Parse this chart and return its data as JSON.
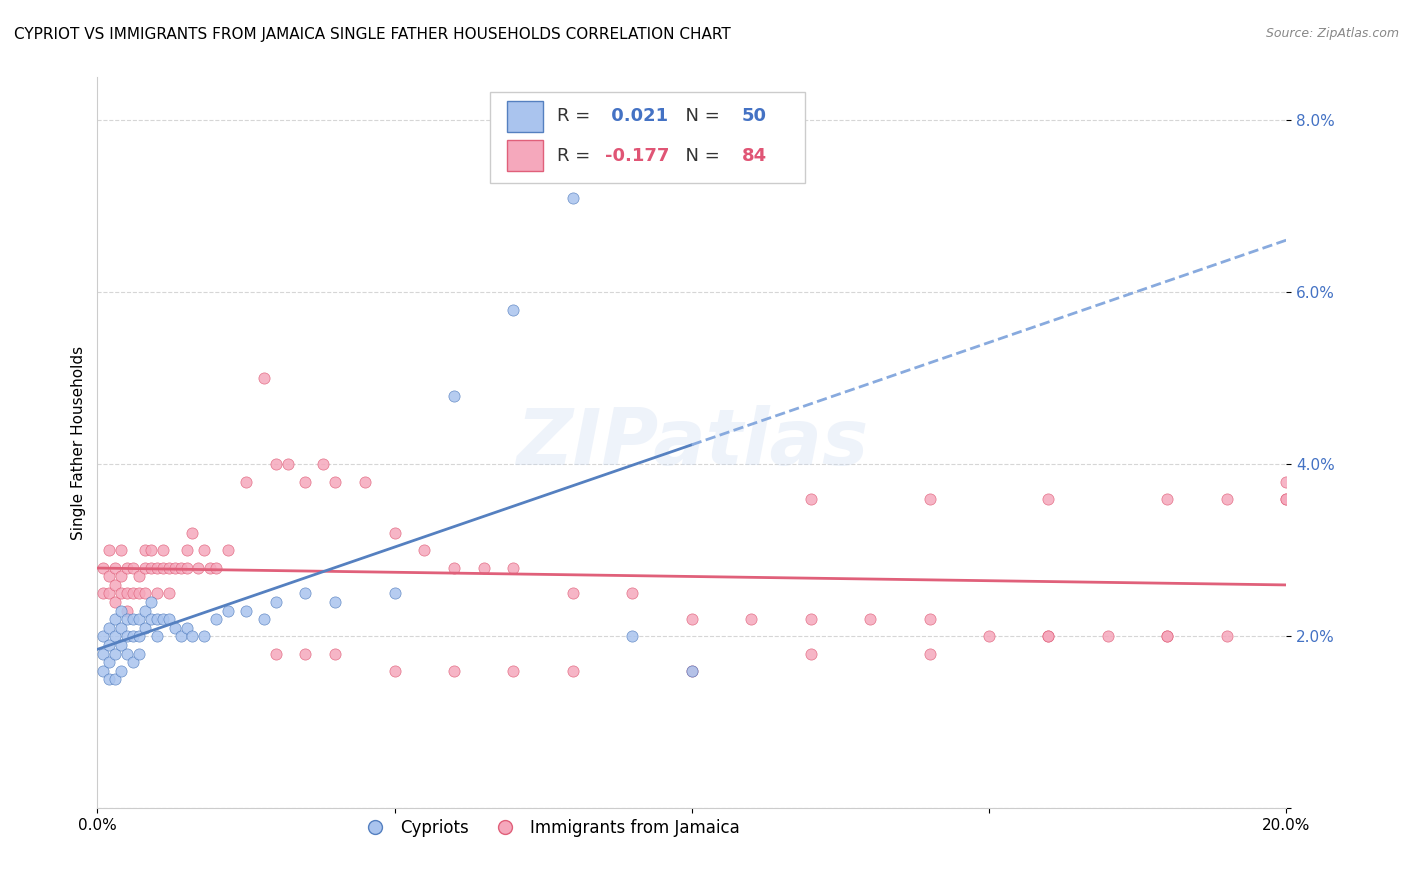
{
  "title": "CYPRIOT VS IMMIGRANTS FROM JAMAICA SINGLE FATHER HOUSEHOLDS CORRELATION CHART",
  "source": "Source: ZipAtlas.com",
  "ylabel": "Single Father Households",
  "xlim": [
    0.0,
    0.2
  ],
  "ylim": [
    0.0,
    0.085
  ],
  "yticks": [
    0.0,
    0.02,
    0.04,
    0.06,
    0.08
  ],
  "ytick_labels": [
    "",
    "2.0%",
    "4.0%",
    "6.0%",
    "8.0%"
  ],
  "xticks": [
    0.0,
    0.05,
    0.1,
    0.15,
    0.2
  ],
  "xtick_labels": [
    "0.0%",
    "",
    "",
    "",
    "20.0%"
  ],
  "R_cypriot": 0.021,
  "N_cypriot": 50,
  "R_jamaica": -0.177,
  "N_jamaica": 84,
  "color_cypriot": "#aac4ee",
  "color_jamaica": "#f5a8bc",
  "color_cypriot_line": "#5580c0",
  "color_jamaica_line": "#e0607a",
  "color_cypriot_dashed": "#88aade",
  "watermark": "ZIPatlas",
  "cypriot_x": [
    0.001,
    0.001,
    0.001,
    0.002,
    0.002,
    0.002,
    0.002,
    0.003,
    0.003,
    0.003,
    0.003,
    0.004,
    0.004,
    0.004,
    0.004,
    0.005,
    0.005,
    0.005,
    0.006,
    0.006,
    0.006,
    0.007,
    0.007,
    0.007,
    0.008,
    0.008,
    0.009,
    0.009,
    0.01,
    0.01,
    0.011,
    0.012,
    0.013,
    0.014,
    0.015,
    0.016,
    0.018,
    0.02,
    0.022,
    0.025,
    0.028,
    0.03,
    0.035,
    0.04,
    0.05,
    0.06,
    0.07,
    0.08,
    0.09,
    0.1
  ],
  "cypriot_y": [
    0.02,
    0.018,
    0.016,
    0.021,
    0.019,
    0.017,
    0.015,
    0.022,
    0.02,
    0.018,
    0.015,
    0.023,
    0.021,
    0.019,
    0.016,
    0.022,
    0.02,
    0.018,
    0.022,
    0.02,
    0.017,
    0.022,
    0.02,
    0.018,
    0.023,
    0.021,
    0.024,
    0.022,
    0.022,
    0.02,
    0.022,
    0.022,
    0.021,
    0.02,
    0.021,
    0.02,
    0.02,
    0.022,
    0.023,
    0.023,
    0.022,
    0.024,
    0.025,
    0.024,
    0.025,
    0.048,
    0.058,
    0.071,
    0.02,
    0.016
  ],
  "jamaica_x": [
    0.001,
    0.001,
    0.002,
    0.002,
    0.002,
    0.003,
    0.003,
    0.003,
    0.004,
    0.004,
    0.004,
    0.005,
    0.005,
    0.005,
    0.006,
    0.006,
    0.007,
    0.007,
    0.008,
    0.008,
    0.008,
    0.009,
    0.009,
    0.01,
    0.01,
    0.011,
    0.011,
    0.012,
    0.012,
    0.013,
    0.014,
    0.015,
    0.015,
    0.016,
    0.017,
    0.018,
    0.019,
    0.02,
    0.022,
    0.025,
    0.028,
    0.03,
    0.032,
    0.035,
    0.038,
    0.04,
    0.045,
    0.05,
    0.055,
    0.06,
    0.065,
    0.07,
    0.08,
    0.09,
    0.1,
    0.11,
    0.12,
    0.13,
    0.14,
    0.15,
    0.16,
    0.17,
    0.18,
    0.19,
    0.2,
    0.03,
    0.035,
    0.04,
    0.05,
    0.06,
    0.07,
    0.08,
    0.1,
    0.12,
    0.14,
    0.16,
    0.18,
    0.2,
    0.12,
    0.14,
    0.16,
    0.18,
    0.19,
    0.2
  ],
  "jamaica_y": [
    0.028,
    0.025,
    0.03,
    0.027,
    0.025,
    0.028,
    0.026,
    0.024,
    0.027,
    0.03,
    0.025,
    0.028,
    0.025,
    0.023,
    0.028,
    0.025,
    0.027,
    0.025,
    0.03,
    0.028,
    0.025,
    0.03,
    0.028,
    0.028,
    0.025,
    0.03,
    0.028,
    0.028,
    0.025,
    0.028,
    0.028,
    0.03,
    0.028,
    0.032,
    0.028,
    0.03,
    0.028,
    0.028,
    0.03,
    0.038,
    0.05,
    0.04,
    0.04,
    0.038,
    0.04,
    0.038,
    0.038,
    0.032,
    0.03,
    0.028,
    0.028,
    0.028,
    0.025,
    0.025,
    0.022,
    0.022,
    0.022,
    0.022,
    0.022,
    0.02,
    0.02,
    0.02,
    0.02,
    0.02,
    0.038,
    0.018,
    0.018,
    0.018,
    0.016,
    0.016,
    0.016,
    0.016,
    0.016,
    0.018,
    0.018,
    0.02,
    0.02,
    0.036,
    0.036,
    0.036,
    0.036,
    0.036,
    0.036,
    0.036
  ]
}
